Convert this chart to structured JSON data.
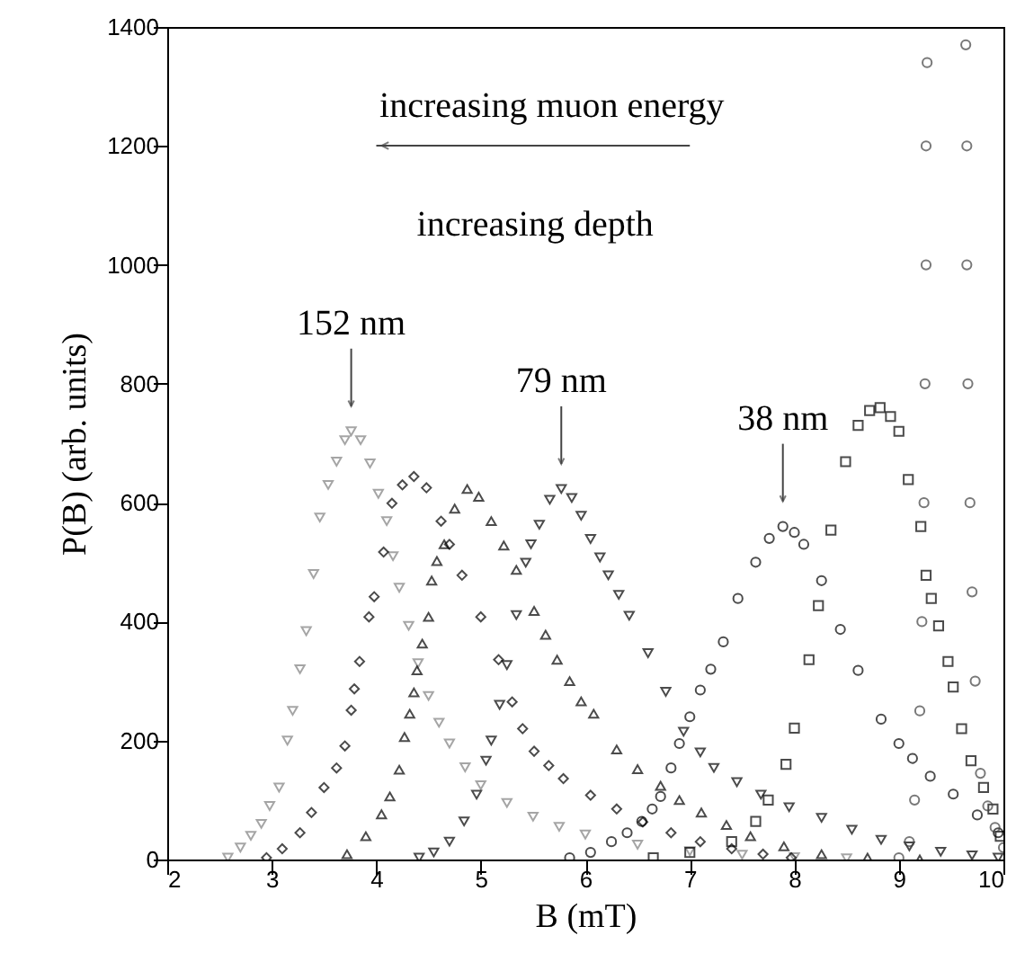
{
  "chart_data": {
    "type": "scatter",
    "xlabel": "B (mT)",
    "ylabel": "P(B) (arb. units)",
    "xlim": [
      2,
      10
    ],
    "xticks": [
      2,
      3,
      4,
      5,
      6,
      7,
      8,
      9,
      10
    ],
    "ylim": [
      0,
      1400
    ],
    "yticks": [
      0,
      200,
      400,
      600,
      800,
      1000,
      1200,
      1400
    ],
    "annotations": [
      "increasing muon energy",
      "increasing depth",
      {
        "text": "152 nm",
        "x": 3.76,
        "y": 720
      },
      {
        "text": "79 nm",
        "x": 5.77,
        "y": 623
      },
      {
        "text": "38 nm",
        "x": 7.89,
        "y": 560
      }
    ],
    "series": [
      {
        "color": "#808080",
        "marker": "triangle-down",
        "x": [
          2.58,
          2.7,
          2.8,
          2.9,
          2.98,
          3.07,
          3.15,
          3.2,
          3.27,
          3.33,
          3.4,
          3.46,
          3.54,
          3.62,
          3.7,
          3.76,
          3.85,
          3.94,
          4.02,
          4.1,
          4.16,
          4.22,
          4.31,
          4.4,
          4.5,
          4.6,
          4.7,
          4.85,
          5.0,
          5.25,
          5.5,
          5.75,
          6.0,
          6.5,
          7.0,
          7.5,
          8.0,
          8.5
        ],
        "values": [
          3,
          20,
          40,
          60,
          90,
          121,
          200,
          250,
          320,
          384,
          480,
          575,
          630,
          669,
          705,
          720,
          705,
          666,
          615,
          569,
          510,
          457,
          393,
          330,
          275,
          230,
          195,
          155,
          125,
          95,
          72,
          55,
          42,
          25,
          14,
          8,
          4,
          2
        ]
      },
      {
        "color": "#000000",
        "marker": "diamond",
        "x": [
          2.95,
          3.1,
          3.27,
          3.38,
          3.5,
          3.62,
          3.7,
          3.76,
          3.79,
          3.84,
          3.93,
          3.98,
          4.07,
          4.15,
          4.25,
          4.36,
          4.48,
          4.62,
          4.7,
          4.82,
          5.0,
          5.17,
          5.3,
          5.4,
          5.51,
          5.65,
          5.79,
          6.05,
          6.3,
          6.55,
          6.82,
          7.1,
          7.4,
          7.7,
          7.97
        ],
        "values": [
          3,
          18,
          45,
          79,
          121,
          154,
          191,
          251,
          287,
          333,
          408,
          442,
          517,
          599,
          630,
          644,
          625,
          569,
          530,
          478,
          408,
          336,
          265,
          220,
          182,
          158,
          136,
          108,
          85,
          63,
          45,
          30,
          18,
          9,
          3
        ]
      },
      {
        "color": "#000000",
        "marker": "triangle",
        "x": [
          3.72,
          3.9,
          4.05,
          4.13,
          4.22,
          4.27,
          4.32,
          4.36,
          4.39,
          4.44,
          4.5,
          4.53,
          4.58,
          4.65,
          4.75,
          4.87,
          4.98,
          5.1,
          5.22,
          5.34,
          5.51,
          5.62,
          5.73,
          5.85,
          5.96,
          6.08,
          6.3,
          6.5,
          6.72,
          6.9,
          7.11,
          7.35,
          7.58,
          7.9,
          8.26,
          8.7,
          9.2
        ],
        "values": [
          9,
          39,
          76,
          106,
          151,
          206,
          245,
          281,
          318,
          363,
          408,
          469,
          502,
          530,
          590,
          623,
          610,
          569,
          528,
          487,
          418,
          378,
          336,
          300,
          266,
          245,
          185,
          152,
          124,
          100,
          79,
          58,
          39,
          22,
          9,
          3,
          0
        ]
      },
      {
        "color": "#000000",
        "marker": "triangle-down",
        "x": [
          4.41,
          4.55,
          4.7,
          4.84,
          4.96,
          5.05,
          5.1,
          5.18,
          5.25,
          5.34,
          5.43,
          5.48,
          5.56,
          5.66,
          5.77,
          5.87,
          5.96,
          6.05,
          6.14,
          6.22,
          6.32,
          6.42,
          6.6,
          6.77,
          6.94,
          7.1,
          7.23,
          7.45,
          7.68,
          7.95,
          8.26,
          8.55,
          8.83,
          9.1,
          9.4,
          9.7,
          9.95
        ],
        "values": [
          3,
          12,
          30,
          64,
          109,
          166,
          200,
          260,
          327,
          411,
          499,
          530,
          563,
          605,
          623,
          608,
          578,
          539,
          508,
          478,
          445,
          410,
          347,
          282,
          215,
          180,
          154,
          130,
          109,
          88,
          70,
          50,
          33,
          22,
          13,
          7,
          3
        ]
      },
      {
        "color": "#000000",
        "marker": "circle",
        "x": [
          5.85,
          6.05,
          6.25,
          6.4,
          6.54,
          6.64,
          6.72,
          6.82,
          6.9,
          7.0,
          7.1,
          7.2,
          7.32,
          7.46,
          7.63,
          7.76,
          7.89,
          8.0,
          8.09,
          8.26,
          8.44,
          8.61,
          8.83,
          9.0,
          9.13,
          9.3,
          9.52,
          9.75,
          9.95
        ],
        "values": [
          3,
          12,
          30,
          45,
          64,
          85,
          106,
          154,
          195,
          240,
          285,
          320,
          366,
          439,
          500,
          540,
          560,
          550,
          530,
          469,
          387,
          318,
          236,
          195,
          170,
          140,
          110,
          75,
          45
        ]
      },
      {
        "color": "#000000",
        "marker": "square",
        "x": [
          6.65,
          7.0,
          7.4,
          7.63,
          7.75,
          7.92,
          8.0,
          8.14,
          8.23,
          8.35,
          8.49,
          8.61,
          8.72,
          8.82,
          8.92,
          9.0,
          9.09,
          9.21,
          9.26,
          9.31,
          9.38,
          9.47,
          9.52,
          9.6,
          9.69,
          9.81,
          9.9,
          9.97
        ],
        "values": [
          3,
          12,
          30,
          64,
          100,
          160,
          221,
          336,
          427,
          554,
          669,
          730,
          755,
          760,
          745,
          720,
          639,
          560,
          478,
          439,
          393,
          333,
          290,
          220,
          166,
          121,
          85,
          39
        ]
      },
      {
        "color": "#404040",
        "marker": "circle",
        "x": [
          9.0,
          9.1,
          9.15,
          9.2,
          9.22,
          9.24,
          9.25,
          9.26,
          9.26,
          9.27,
          9.64,
          9.65,
          9.65,
          9.66,
          9.68,
          9.7,
          9.73,
          9.78,
          9.85,
          9.92,
          10.0
        ],
        "values": [
          3,
          30,
          100,
          250,
          400,
          600,
          800,
          1000,
          1200,
          1340,
          1370,
          1200,
          1000,
          800,
          600,
          450,
          300,
          145,
          90,
          54,
          20
        ]
      }
    ]
  }
}
